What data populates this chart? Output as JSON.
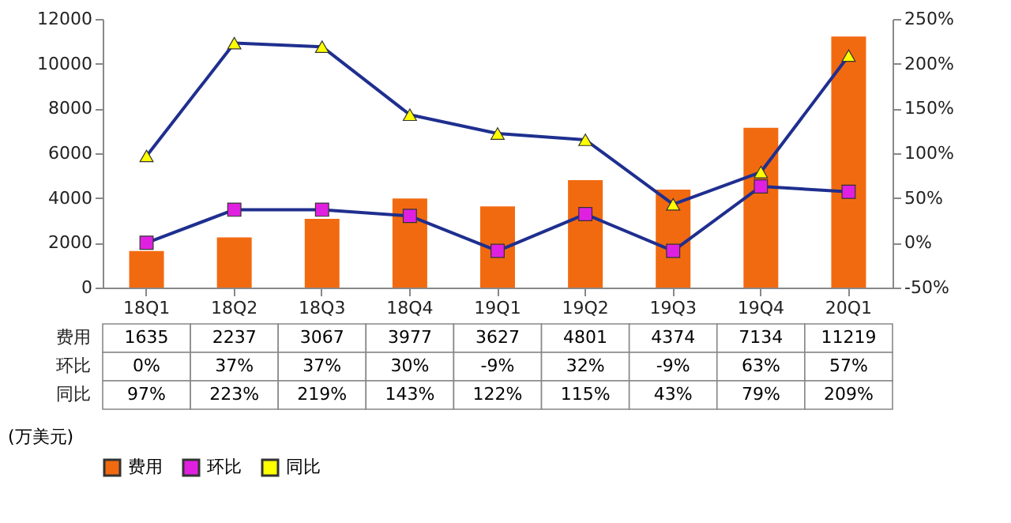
{
  "chart_data": {
    "type": "bar",
    "categories": [
      "18Q1",
      "18Q2",
      "18Q3",
      "18Q4",
      "19Q1",
      "19Q2",
      "19Q3",
      "19Q4",
      "20Q1"
    ],
    "series": [
      {
        "name": "费用",
        "color": "#f26a10",
        "values": [
          1635,
          2237,
          3067,
          3977,
          3627,
          4801,
          4374,
          7134,
          11219
        ],
        "value_labels": [
          "1635",
          "2237",
          "3067",
          "3977",
          "3627",
          "4801",
          "4374",
          "7134",
          "11219"
        ]
      },
      {
        "name": "环比",
        "type": "line",
        "axis": "y2",
        "color": "#e020e0",
        "marker": "square",
        "values": [
          0,
          37,
          37,
          30,
          -9,
          32,
          -9,
          63,
          57
        ],
        "value_labels": [
          "0%",
          "37%",
          "37%",
          "30%",
          "-9%",
          "32%",
          "-9%",
          "63%",
          "57%"
        ]
      },
      {
        "name": "同比",
        "type": "line",
        "axis": "y2",
        "color": "#ffff00",
        "marker": "triangle",
        "values": [
          97,
          223,
          219,
          143,
          122,
          115,
          43,
          79,
          209
        ],
        "value_labels": [
          "97%",
          "223%",
          "219%",
          "143%",
          "122%",
          "115%",
          "43%",
          "79%",
          "209%"
        ]
      }
    ],
    "ylim": [
      0,
      12000
    ],
    "yticks": [
      0,
      2000,
      4000,
      6000,
      8000,
      10000,
      12000
    ],
    "y2lim": [
      -50,
      250
    ],
    "y2ticks": [
      {
        "value": -50,
        "label": "-50%"
      },
      {
        "value": 0,
        "label": "0%"
      },
      {
        "value": 50,
        "label": "50%"
      },
      {
        "value": 100,
        "label": "100%"
      },
      {
        "value": 150,
        "label": "150%"
      },
      {
        "value": 200,
        "label": "200%"
      },
      {
        "value": 250,
        "label": "250%"
      }
    ],
    "grid": false,
    "legend": "bottom",
    "data_labels": true,
    "annotations": [
      "(万美元)"
    ]
  }
}
